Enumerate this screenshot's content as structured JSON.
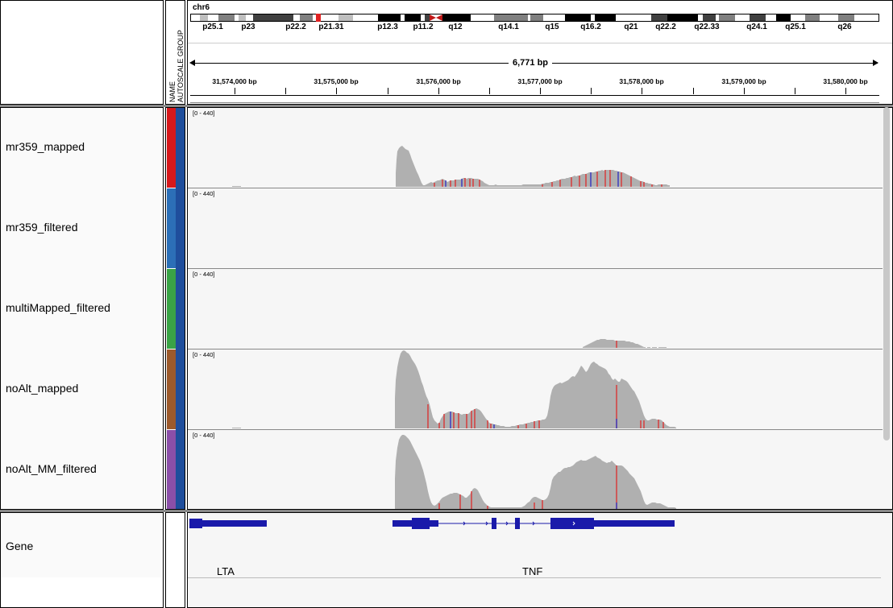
{
  "header": {
    "attribute_labels": [
      "NAME",
      "AUTOSCALE GROUP"
    ],
    "chromosome": "chr6",
    "cytobands": [
      "p25.1",
      "p23",
      "p22.2",
      "p21.31",
      "p12.3",
      "p11.2",
      "q12",
      "q14.1",
      "q15",
      "q16.2",
      "q21",
      "q22.2",
      "q22.33",
      "q24.1",
      "q25.1",
      "q26"
    ],
    "span": "6,771 bp",
    "ruler_ticks": [
      "31,574,000 bp",
      "31,575,000 bp",
      "31,576,000 bp",
      "31,577,000 bp",
      "31,578,000 bp",
      "31,579,000 bp",
      "31,580,000 bp"
    ]
  },
  "tracks": [
    {
      "name": "mr359_mapped",
      "range": "[0 - 440]",
      "color": "#d7191c"
    },
    {
      "name": "mr359_filtered",
      "range": "[0 - 440]",
      "color": "#2c6fb7"
    },
    {
      "name": "multiMapped_filtered",
      "range": "[0 - 440]",
      "color": "#3aa346"
    },
    {
      "name": "noAlt_mapped",
      "range": "[0 - 440]",
      "color": "#9c5a2c"
    },
    {
      "name": "noAlt_MM_filtered",
      "range": "[0 - 440]",
      "color": "#8b4fa8"
    }
  ],
  "autoscale_group_color": "#1f4e9c",
  "coverage_color": "#b0b0b0",
  "gene_track": {
    "name": "Gene",
    "genes": [
      "LTA",
      "TNF"
    ],
    "color": "#1a1aaa"
  }
}
